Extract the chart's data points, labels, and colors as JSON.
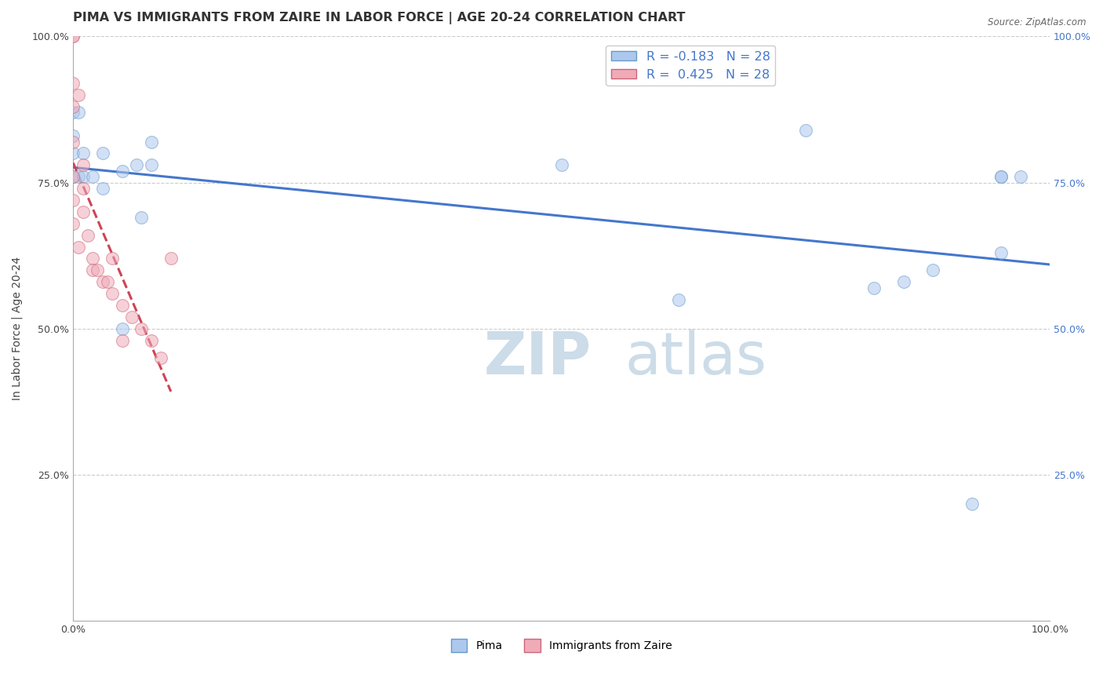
{
  "title": "PIMA VS IMMIGRANTS FROM ZAIRE IN LABOR FORCE | AGE 20-24 CORRELATION CHART",
  "source": "Source: ZipAtlas.com",
  "ylabel": "In Labor Force | Age 20-24",
  "xlim": [
    0.0,
    1.0
  ],
  "ylim": [
    0.0,
    1.0
  ],
  "legend_r_pima": "-0.183",
  "legend_r_zaire": "0.425",
  "legend_n": "28",
  "pima_color": "#adc8ed",
  "zaire_color": "#f0aab8",
  "pima_edge_color": "#6699cc",
  "zaire_edge_color": "#cc6677",
  "trend_pima_color": "#4477cc",
  "trend_zaire_color": "#cc4455",
  "watermark_color": "#ccdce8",
  "background_color": "#ffffff",
  "grid_color": "#cccccc",
  "pima_x": [
    0.0,
    0.0,
    0.0,
    0.0,
    0.005,
    0.005,
    0.01,
    0.01,
    0.02,
    0.03,
    0.03,
    0.05,
    0.05,
    0.065,
    0.07,
    0.08,
    0.08,
    0.5,
    0.62,
    0.75,
    0.82,
    0.85,
    0.88,
    0.92,
    0.95,
    0.95,
    0.95,
    0.97
  ],
  "pima_y": [
    0.76,
    0.8,
    0.83,
    0.87,
    0.87,
    0.76,
    0.76,
    0.8,
    0.76,
    0.74,
    0.8,
    0.77,
    0.5,
    0.78,
    0.69,
    0.82,
    0.78,
    0.78,
    0.55,
    0.84,
    0.57,
    0.58,
    0.6,
    0.2,
    0.63,
    0.76,
    0.76,
    0.76
  ],
  "zaire_x": [
    0.0,
    0.0,
    0.0,
    0.0,
    0.0,
    0.0,
    0.0,
    0.0,
    0.005,
    0.005,
    0.01,
    0.01,
    0.01,
    0.015,
    0.02,
    0.02,
    0.025,
    0.03,
    0.035,
    0.04,
    0.04,
    0.05,
    0.05,
    0.06,
    0.07,
    0.08,
    0.09,
    0.1
  ],
  "zaire_y": [
    1.0,
    1.0,
    0.92,
    0.88,
    0.82,
    0.76,
    0.72,
    0.68,
    0.9,
    0.64,
    0.78,
    0.74,
    0.7,
    0.66,
    0.62,
    0.6,
    0.6,
    0.58,
    0.58,
    0.62,
    0.56,
    0.54,
    0.48,
    0.52,
    0.5,
    0.48,
    0.45,
    0.62
  ],
  "marker_size": 130,
  "marker_alpha": 0.55,
  "title_fontsize": 11.5,
  "axis_fontsize": 10,
  "tick_fontsize": 9,
  "right_tick_color": "#4477cc"
}
